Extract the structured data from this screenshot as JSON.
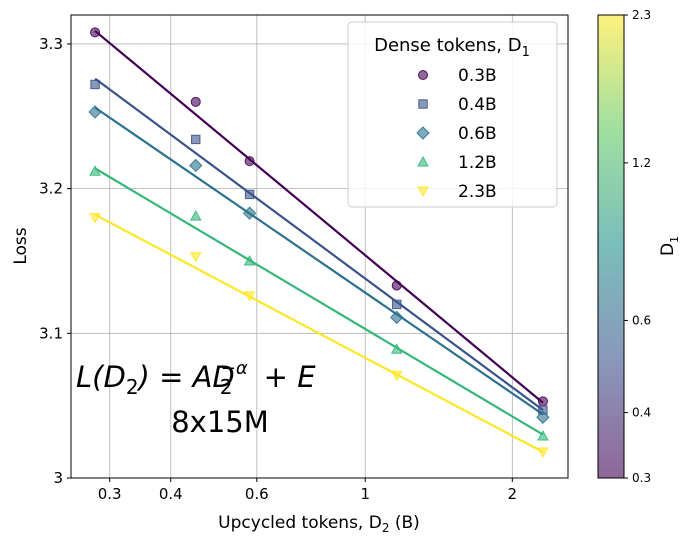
{
  "chart_data": {
    "type": "scatter",
    "xscale": "log",
    "xlabel": "Upcycled tokens, D",
    "xlabel_sub": "2",
    "xlabel_unit": "(B)",
    "ylabel": "Loss",
    "xlim": [
      0.25,
      2.6
    ],
    "ylim": [
      3.0,
      3.32
    ],
    "xticks": [
      0.3,
      0.4,
      0.6,
      1,
      2
    ],
    "xtick_labels": [
      "0.3",
      "0.4",
      "0.6",
      "1",
      "2"
    ],
    "yticks": [
      3.0,
      3.1,
      3.2,
      3.3
    ],
    "ytick_labels": [
      "3",
      "3.1",
      "3.2",
      "3.3"
    ],
    "grid": true,
    "legend": {
      "title": "Dense tokens, D",
      "title_sub": "1",
      "placement": "top-right"
    },
    "annotation_formula": {
      "lhs": "L(D",
      "lhs_sub": "2",
      "mid": ") = AD",
      "mid_sub": "2",
      "mid_sup": "−α",
      "rhs": " + E"
    },
    "annotation_model": "8x15M",
    "colorbar": {
      "label": "D",
      "label_sub": "1",
      "ticks": [
        "0.3",
        "0.4",
        "0.6",
        "1.2",
        "2.3"
      ],
      "tick_values": [
        0.3,
        0.4,
        0.6,
        1.2,
        2.3
      ]
    },
    "x": [
      0.28,
      0.45,
      0.58,
      1.16,
      2.31
    ],
    "series": [
      {
        "name": "0.3B",
        "marker": "circle",
        "color": "#440154",
        "values": [
          3.308,
          3.26,
          3.219,
          3.133,
          3.053
        ],
        "fit": [
          3.309,
          3.052
        ]
      },
      {
        "name": "0.4B",
        "marker": "square",
        "color": "#3b528b",
        "values": [
          3.272,
          3.234,
          3.196,
          3.12,
          3.047
        ],
        "fit": [
          3.276,
          3.047
        ]
      },
      {
        "name": "0.6B",
        "marker": "diamond",
        "color": "#2c728e",
        "values": [
          3.253,
          3.216,
          3.183,
          3.111,
          3.042
        ],
        "fit": [
          3.256,
          3.044
        ]
      },
      {
        "name": "1.2B",
        "marker": "triangle-up",
        "color": "#35b779",
        "values": [
          3.212,
          3.181,
          3.15,
          3.089,
          3.029
        ],
        "fit": [
          3.214,
          3.03
        ]
      },
      {
        "name": "2.3B",
        "marker": "triangle-down",
        "color": "#fde725",
        "values": [
          3.18,
          3.153,
          3.126,
          3.071,
          3.018
        ],
        "fit": [
          3.182,
          3.018
        ]
      }
    ]
  }
}
